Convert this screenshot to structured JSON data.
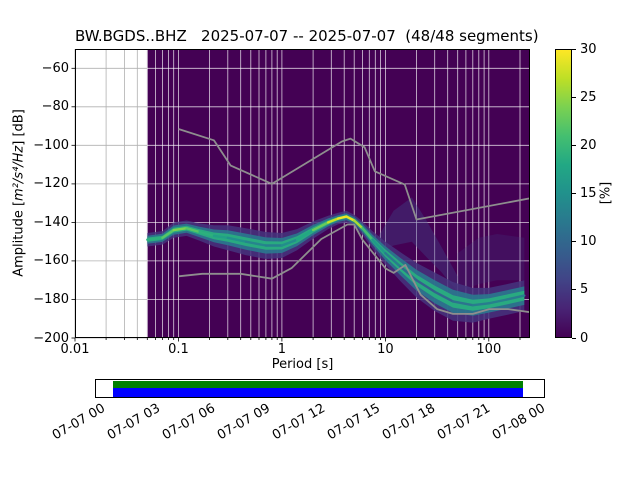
{
  "title": "BW.BGDS..BHZ   2025-07-07 -- 2025-07-07  (48/48 segments)",
  "axes": {
    "ylabel_prefix": "Amplitude [",
    "ylabel_math": "m²/s⁴/Hz",
    "ylabel_suffix": "] [dB]",
    "xlabel": "Period [s]",
    "x_tick_values": [
      0.01,
      0.1,
      1,
      10,
      100
    ],
    "x_tick_labels": [
      "0.01",
      "0.1",
      "1",
      "10",
      "100"
    ],
    "y_tick_values": [
      -60,
      -80,
      -100,
      -120,
      -140,
      -160,
      -180,
      -200
    ],
    "y_tick_labels": [
      "−60",
      "−80",
      "−100",
      "−120",
      "−140",
      "−160",
      "−180",
      "−200"
    ]
  },
  "colorbar": {
    "label": "[%]",
    "min": 0,
    "max": 30,
    "tick_values": [
      0,
      5,
      10,
      15,
      20,
      25,
      30
    ],
    "tick_labels": [
      "0",
      "5",
      "10",
      "15",
      "20",
      "25",
      "30"
    ],
    "gradient": [
      "#440154",
      "#482475",
      "#414487",
      "#355f8d",
      "#2a788e",
      "#21918c",
      "#22a884",
      "#44bf70",
      "#7ad151",
      "#bddf26",
      "#fde725"
    ]
  },
  "chart_data": {
    "type": "heatmap",
    "title": "BW.BGDS..BHZ   2025-07-07 -- 2025-07-07  (48/48 segments)",
    "station": "BW.BGDS..BHZ",
    "date_range": "2025-07-07 -- 2025-07-07",
    "segments_used": 48,
    "segments_total": 48,
    "xlabel": "Period [s]",
    "ylabel": "Amplitude [m²/s⁴/Hz] [dB]",
    "x_scale": "log",
    "xlim": [
      0.01,
      250
    ],
    "ylim": [
      -200,
      -50
    ],
    "grid": true,
    "probability_unit": "%",
    "probability_range": [
      0,
      30
    ],
    "no_data_color": "#ffffff",
    "zero_prob_color": "#440154",
    "data_period_range": [
      0.05,
      250
    ],
    "psd_mode": {
      "comment": "mode of PSD probability distribution: center dB, half-width of visible band, peak probability in %",
      "periods": [
        0.05,
        0.07,
        0.09,
        0.12,
        0.16,
        0.22,
        0.3,
        0.45,
        0.7,
        1.0,
        1.4,
        2.0,
        2.8,
        3.5,
        4.2,
        5.0,
        6.0,
        7.5,
        10,
        14,
        20,
        30,
        45,
        70,
        100,
        150,
        220
      ],
      "db": [
        -149,
        -148,
        -144,
        -143,
        -145,
        -147,
        -148,
        -150,
        -152,
        -152,
        -149,
        -144,
        -140,
        -138,
        -137,
        -139,
        -143,
        -149,
        -156,
        -163,
        -170,
        -176,
        -181,
        -183,
        -182,
        -180,
        -178
      ],
      "halfwidth_db": [
        3.5,
        3.5,
        4,
        4,
        4.5,
        5.5,
        6.5,
        7,
        7,
        6.5,
        5.5,
        4.5,
        3.5,
        3,
        3,
        3,
        3.5,
        4.5,
        6,
        7.5,
        9,
        10,
        10,
        9,
        8,
        8,
        8
      ],
      "peak_percent": [
        18,
        20,
        24,
        24,
        20,
        18,
        16,
        14,
        13,
        13,
        16,
        20,
        26,
        29,
        30,
        28,
        24,
        18,
        14,
        11,
        9,
        9,
        11,
        12,
        13,
        13,
        12
      ]
    },
    "haze": [
      {
        "periods": [
          8,
          12,
          18,
          25,
          35,
          50
        ],
        "upper_db": [
          -150,
          -134,
          -127,
          -139,
          -153,
          -168
        ],
        "lower_db": [
          -156,
          -152,
          -150,
          -158,
          -166,
          -176
        ],
        "color": "#414487",
        "opacity": 0.4
      },
      {
        "periods": [
          50,
          80,
          120,
          220
        ],
        "upper_db": [
          -156,
          -148,
          -146,
          -148
        ],
        "lower_db": [
          -176,
          -172,
          -170,
          -170
        ],
        "color": "#414487",
        "opacity": 0.22
      }
    ],
    "noise_models": {
      "color": "#8e8e8e",
      "nhnm": {
        "periods": [
          0.1,
          0.22,
          0.32,
          0.8,
          3.8,
          4.6,
          6.3,
          7.9,
          15.4,
          20.0,
          354.8
        ],
        "db": [
          -91.5,
          -97.4,
          -110.5,
          -120.0,
          -98.0,
          -96.5,
          -101.0,
          -113.5,
          -120.4,
          -138.5,
          -126.0
        ]
      },
      "nlnm": {
        "periods": [
          0.1,
          0.17,
          0.4,
          0.8,
          1.24,
          2.4,
          4.3,
          5.0,
          6.0,
          10.0,
          12.0,
          15.6,
          21.9,
          31.6,
          45.0,
          70.0,
          101.0,
          154.0,
          328.0
        ],
        "db": [
          -168.0,
          -166.7,
          -166.7,
          -169.2,
          -163.7,
          -148.6,
          -141.1,
          -141.1,
          -149.0,
          -163.8,
          -166.2,
          -162.1,
          -177.5,
          -185.0,
          -187.5,
          -187.5,
          -185.0,
          -185.0,
          -187.5
        ]
      }
    }
  },
  "coverage": {
    "green_color": "#008000",
    "blue_color": "#0000ff",
    "time_tick_labels": [
      "07-07 00",
      "07-07 03",
      "07-07 06",
      "07-07 09",
      "07-07 12",
      "07-07 15",
      "07-07 18",
      "07-07 21",
      "07-08 00"
    ]
  }
}
